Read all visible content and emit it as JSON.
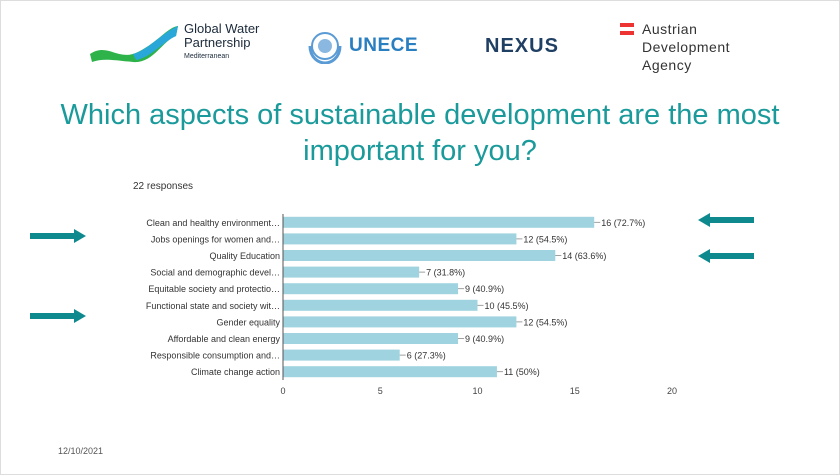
{
  "logos": {
    "gwp": {
      "line1": "Global Water",
      "line2": "Partnership",
      "line3": "Mediterranean"
    },
    "unece": "UNECE",
    "nexus": "NEXUS",
    "ada": {
      "line1": "Austrian",
      "line2": "Development",
      "line3": "Agency"
    }
  },
  "title": "Which aspects of sustainable development are the most important for you?",
  "responses": "22 responses",
  "date": "12/10/2021",
  "colors": {
    "title": "#1a9a9a",
    "bar": "#9fd3df",
    "arrow": "#0e8a8f"
  },
  "chart_data": {
    "type": "bar",
    "orientation": "horizontal",
    "categories": [
      "Clean and healthy environment…",
      "Jobs openings for women and…",
      "Quality Education",
      "Social and demographic devel…",
      "Equitable society and protectio…",
      "Functional state and society wit…",
      "Gender equality",
      "Affordable and clean energy",
      "Responsible consumption and…",
      "Climate change action"
    ],
    "values": [
      16,
      12,
      14,
      7,
      9,
      10,
      12,
      9,
      6,
      11
    ],
    "data_labels": [
      "16 (72.7%)",
      "12 (54.5%)",
      "14 (63.6%)",
      "7 (31.8%)",
      "9 (40.9%)",
      "10 (45.5%)",
      "12 (54.5%)",
      "9 (40.9%)",
      "6 (27.3%)",
      "11 (50%)"
    ],
    "xlim": [
      0,
      20
    ],
    "xticks": [
      "0",
      "5",
      "10",
      "15",
      "20"
    ],
    "grid": false
  }
}
